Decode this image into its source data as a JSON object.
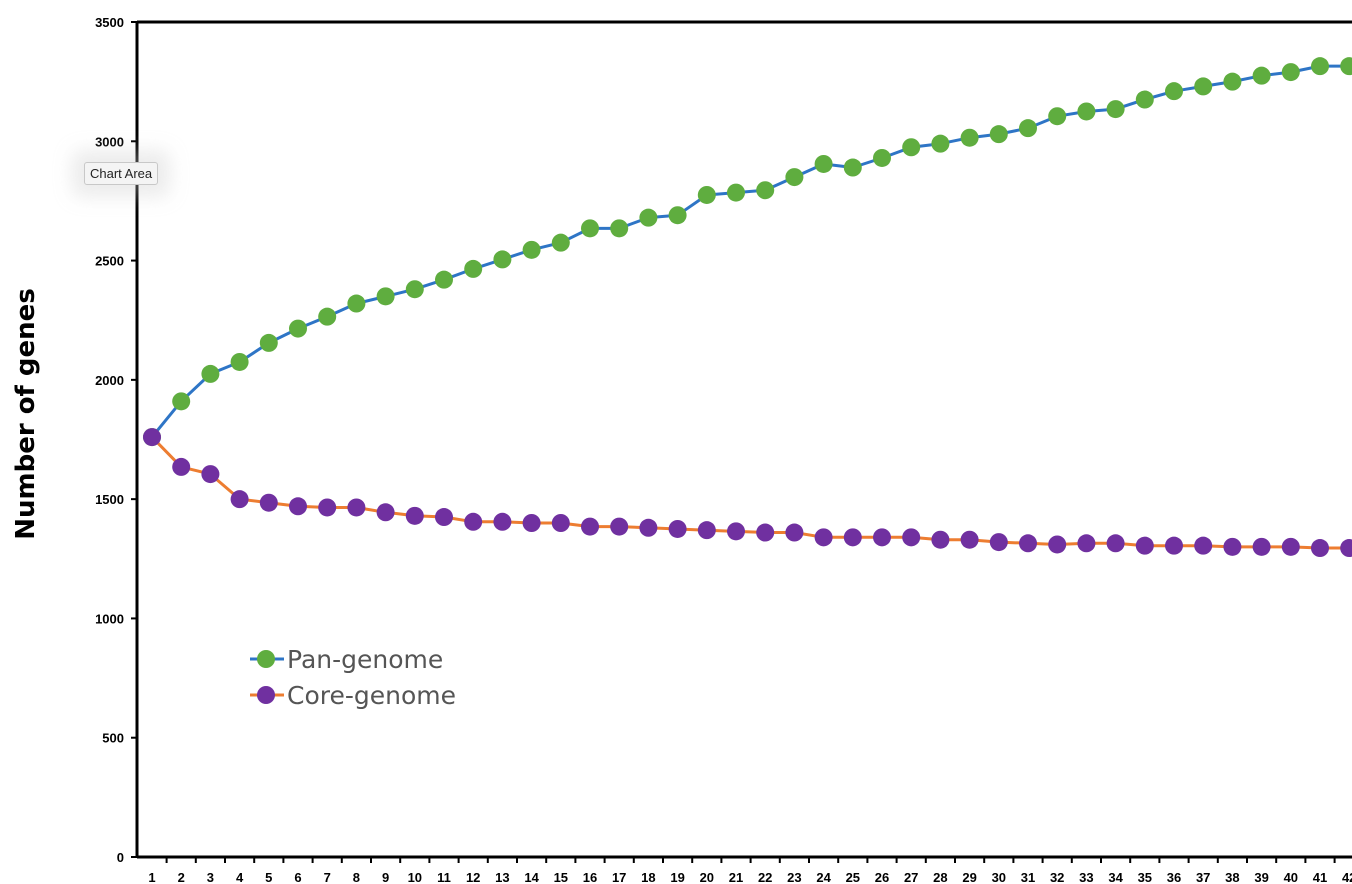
{
  "tooltip": {
    "text": "Chart Area"
  },
  "chart_data": {
    "type": "line",
    "ylabel": "Number of genes",
    "xlabel": "",
    "ylim": [
      0,
      3500
    ],
    "yticks": [
      0,
      500,
      1000,
      1500,
      2000,
      2500,
      3000,
      3500
    ],
    "x": [
      1,
      2,
      3,
      4,
      5,
      6,
      7,
      8,
      9,
      10,
      11,
      12,
      13,
      14,
      15,
      16,
      17,
      18,
      19,
      20,
      21,
      22,
      23,
      24,
      25,
      26,
      27,
      28,
      29,
      30,
      31,
      32,
      33,
      34,
      35,
      36,
      37,
      38,
      39,
      40,
      41,
      42
    ],
    "xtick_labels": [
      "1",
      "2",
      "3",
      "4",
      "5",
      "6",
      "7",
      "8",
      "9",
      "10",
      "11",
      "12",
      "13",
      "14",
      "15",
      "16",
      "17",
      "18",
      "19",
      "20",
      "21",
      "22",
      "23",
      "24",
      "25",
      "26",
      "27",
      "28",
      "29",
      "30",
      "31",
      "32",
      "33",
      "34",
      "35",
      "36",
      "37",
      "38",
      "39",
      "40",
      "41",
      "42"
    ],
    "grid": false,
    "legend_position": "left-middle",
    "series": [
      {
        "name": "Pan-genome",
        "line_color": "#2e75c6",
        "marker_color": "#5fad3f",
        "values": [
          1760,
          1910,
          2025,
          2075,
          2155,
          2215,
          2265,
          2320,
          2350,
          2380,
          2420,
          2465,
          2505,
          2545,
          2575,
          2635,
          2635,
          2680,
          2690,
          2775,
          2785,
          2795,
          2850,
          2905,
          2890,
          2930,
          2975,
          2990,
          3015,
          3030,
          3055,
          3105,
          3125,
          3135,
          3175,
          3210,
          3230,
          3250,
          3275,
          3290,
          3315,
          3315
        ]
      },
      {
        "name": "Core-genome",
        "line_color": "#ed7d31",
        "marker_color": "#7030a0",
        "values": [
          1760,
          1635,
          1605,
          1500,
          1485,
          1470,
          1465,
          1465,
          1445,
          1430,
          1425,
          1405,
          1405,
          1400,
          1400,
          1385,
          1385,
          1380,
          1375,
          1370,
          1365,
          1360,
          1360,
          1340,
          1340,
          1340,
          1340,
          1330,
          1330,
          1320,
          1315,
          1310,
          1315,
          1315,
          1305,
          1305,
          1305,
          1300,
          1300,
          1300,
          1295,
          1295
        ]
      }
    ]
  }
}
